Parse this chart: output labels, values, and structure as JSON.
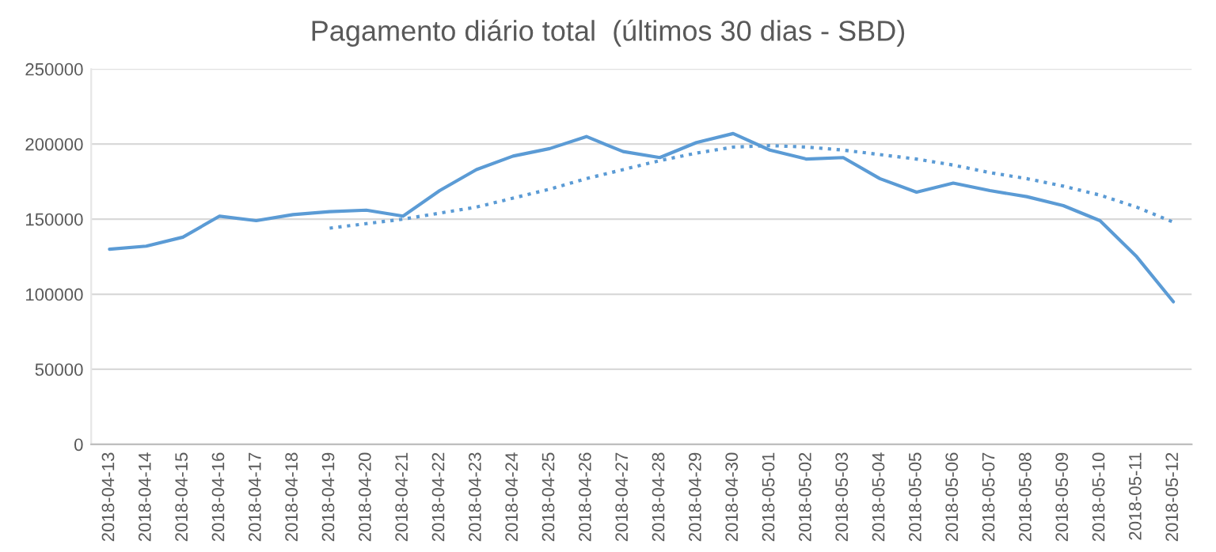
{
  "chart_data": {
    "type": "line",
    "title": "Pagamento diário total  (últimos 30 dias - SBD)",
    "categories": [
      "2018-04-13",
      "2018-04-14",
      "2018-04-15",
      "2018-04-16",
      "2018-04-17",
      "2018-04-18",
      "2018-04-19",
      "2018-04-20",
      "2018-04-21",
      "2018-04-22",
      "2018-04-23",
      "2018-04-24",
      "2018-04-25",
      "2018-04-26",
      "2018-04-27",
      "2018-04-28",
      "2018-04-29",
      "2018-04-30",
      "2018-05-01",
      "2018-05-02",
      "2018-05-03",
      "2018-05-04",
      "2018-05-05",
      "2018-05-06",
      "2018-05-07",
      "2018-05-08",
      "2018-05-09",
      "2018-05-10",
      "2018-05-11",
      "2018-05-12"
    ],
    "series": [
      {
        "color": "#5b9bd5",
        "line_style": "solid",
        "values": [
          130000,
          132000,
          138000,
          152000,
          149000,
          153000,
          155000,
          156000,
          152000,
          169000,
          183000,
          192000,
          197000,
          205000,
          195000,
          191000,
          201000,
          207000,
          196000,
          190000,
          191000,
          177000,
          168000,
          174000,
          169000,
          165000,
          159000,
          149000,
          125000,
          95000
        ]
      },
      {
        "color": "#5b9bd5",
        "line_style": "dotted",
        "values": [
          null,
          null,
          null,
          null,
          null,
          null,
          144000,
          147000,
          150000,
          154000,
          158000,
          164000,
          170000,
          177000,
          183000,
          189000,
          194000,
          198000,
          199000,
          198000,
          196000,
          193000,
          190000,
          186000,
          181000,
          177000,
          172000,
          166000,
          158000,
          148000
        ]
      }
    ],
    "ylim": [
      0,
      250000
    ],
    "yticks": [
      0,
      50000,
      100000,
      150000,
      200000,
      250000
    ],
    "grid": "y",
    "legend": false
  }
}
